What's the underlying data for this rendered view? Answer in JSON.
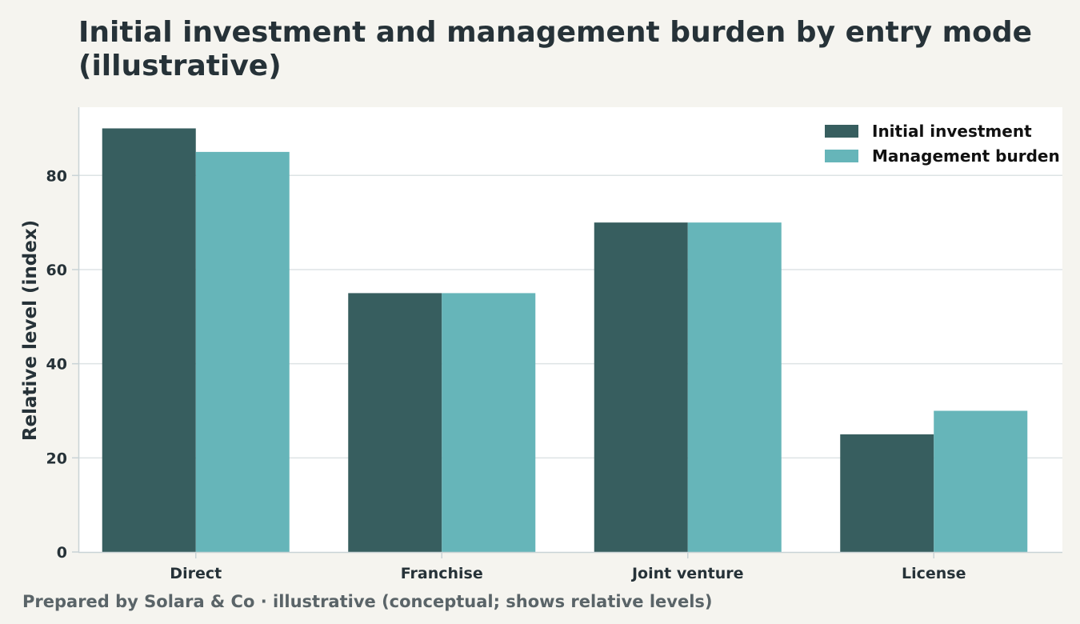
{
  "chart_data": {
    "type": "bar",
    "title": "Initial investment and management burden by entry mode (illustrative)",
    "xlabel": "",
    "ylabel": "Relative level (index)",
    "categories": [
      "Direct",
      "Franchise",
      "Joint venture",
      "License"
    ],
    "series": [
      {
        "name": "Initial investment",
        "values": [
          90,
          55,
          70,
          25
        ],
        "color": "#375e5f"
      },
      {
        "name": "Management burden",
        "values": [
          85,
          55,
          70,
          30
        ],
        "color": "#66b5b9"
      }
    ],
    "ylim": [
      0,
      94.5
    ],
    "yticks": [
      0,
      20,
      40,
      60,
      80
    ],
    "grid": true,
    "legend_position": "top-right"
  },
  "footnote": "Prepared by Solara & Co · illustrative (conceptual; shows relative levels)"
}
